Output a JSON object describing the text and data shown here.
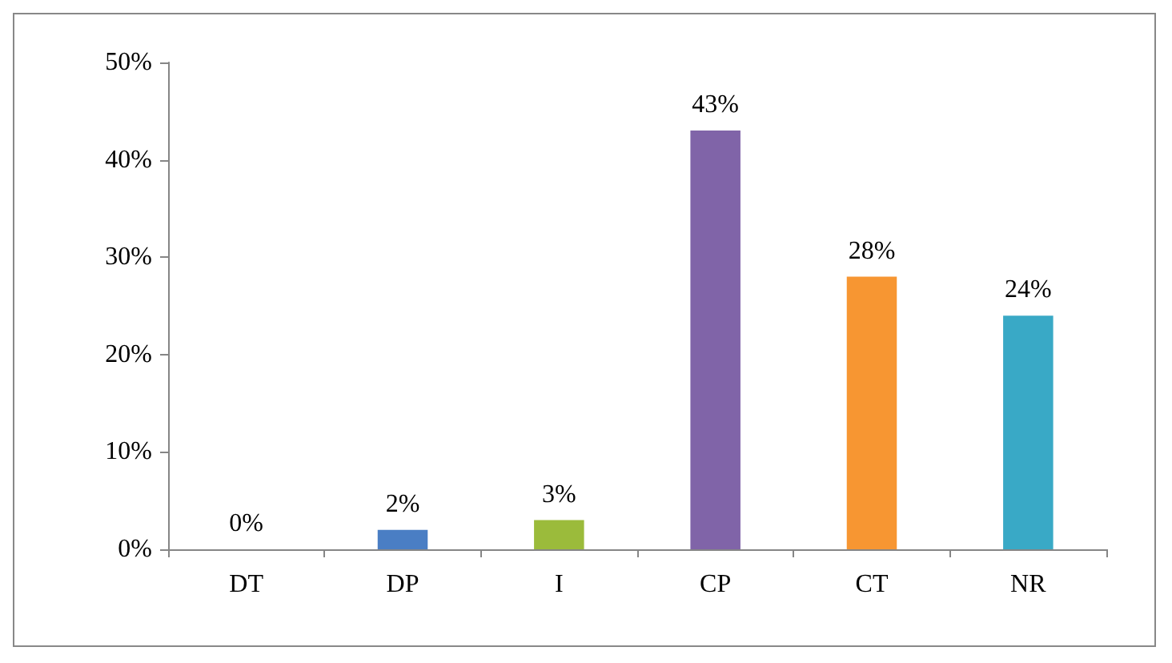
{
  "chart_data": {
    "type": "bar",
    "categories": [
      "DT",
      "DP",
      "I",
      "CP",
      "CT",
      "NR"
    ],
    "values": [
      0,
      2,
      3,
      43,
      28,
      24
    ],
    "colors": [
      "#c0504d",
      "#4a7ec4",
      "#9bbb3b",
      "#8064a8",
      "#f79632",
      "#39a9c6"
    ],
    "value_labels": [
      "0%",
      "2%",
      "3%",
      "43%",
      "28%",
      "24%"
    ],
    "ylim": [
      0,
      50
    ],
    "yticks": [
      {
        "value": 0,
        "label": "0%"
      },
      {
        "value": 10,
        "label": "10%"
      },
      {
        "value": 20,
        "label": "20%"
      },
      {
        "value": 30,
        "label": "30%"
      },
      {
        "value": 40,
        "label": "40%"
      },
      {
        "value": 50,
        "label": "50%"
      }
    ],
    "grid": false
  }
}
